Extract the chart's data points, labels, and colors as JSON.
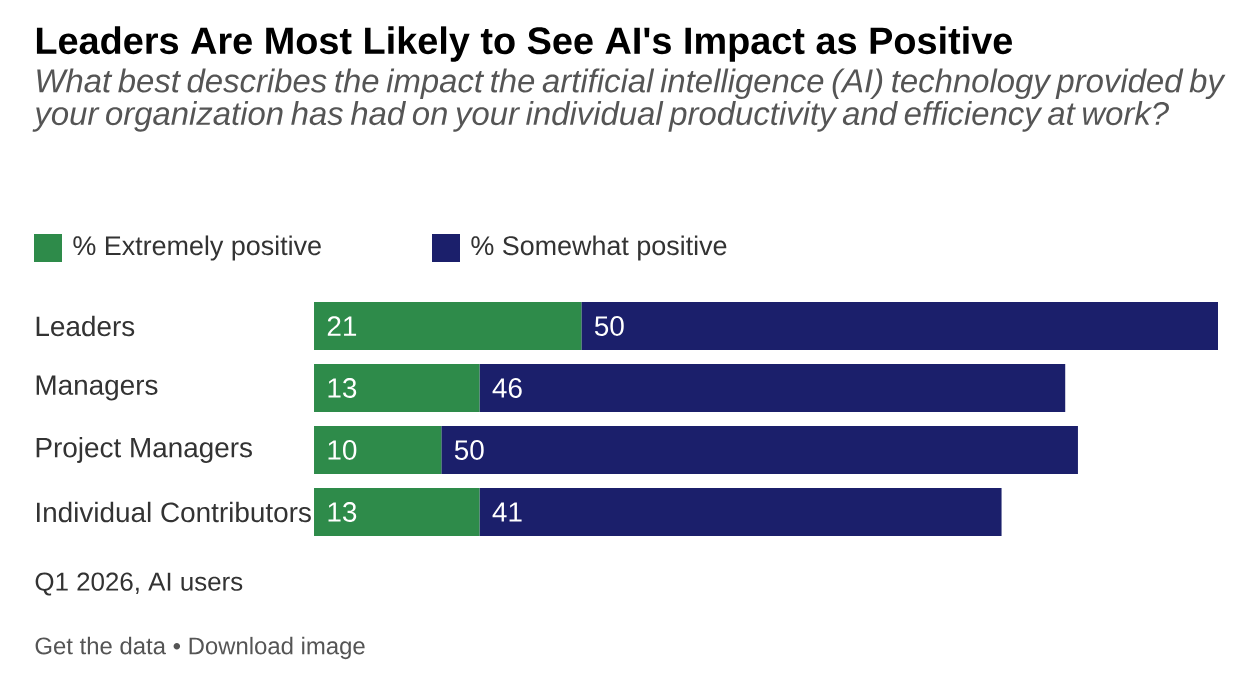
{
  "chart_data": {
    "type": "bar",
    "orientation": "horizontal",
    "stacked": true,
    "data_labels": true,
    "legend": "top left",
    "title": "Leaders Are Most Likely to See AI's Impact as Positive",
    "subtitle": "What best describes the impact the artificial intelligence (AI) technology provided by your organization has had on your individual productivity and efficiency at work?",
    "categories": [
      "Leaders",
      "Managers",
      "Project Managers",
      "Individual Contributors"
    ],
    "series": [
      {
        "name": "% Extremely positive",
        "color": "#2e8b4a",
        "values": [
          21,
          13,
          10,
          13
        ]
      },
      {
        "name": "% Somewhat positive",
        "color": "#1b1f6b",
        "values": [
          50,
          46,
          50,
          41
        ]
      }
    ],
    "annotations": [
      "Q1 2026, AI users",
      "Get the data • Download image"
    ]
  }
}
